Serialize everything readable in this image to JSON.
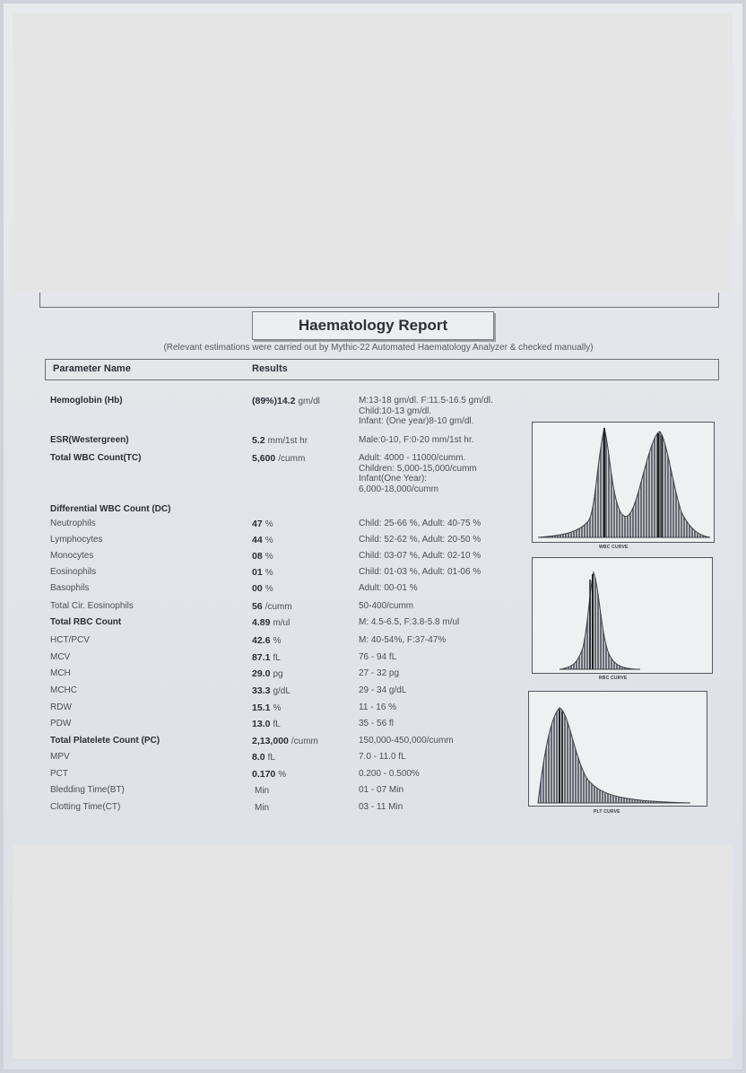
{
  "report": {
    "title": "Haematology Report",
    "subtitle": "(Relevant estimations were carried out by Mythic-22 Automated Haematology Analyzer & checked manually)",
    "col_parameter": "Parameter Name",
    "col_results": "Results"
  },
  "rows": [
    {
      "name": "Hemoglobin (Hb)",
      "bold": true,
      "value": "(89%)14.2",
      "unit": "gm/dl",
      "ref": [
        "M:13-18 gm/dl. F:11.5-16.5 gm/dl.",
        "Child:10-13 gm/dl.",
        "Infant: (One year)8-10 gm/dl."
      ]
    },
    {
      "name": "ESR(Westergreen)",
      "bold": true,
      "value": "5.2",
      "unit": "mm/1st hr",
      "ref": [
        "Male:0-10, F:0-20 mm/1st hr."
      ]
    },
    {
      "name": "Total WBC Count(TC)",
      "bold": true,
      "value": "5,600",
      "unit": "/cumm",
      "ref": [
        "Adult: 4000 - 11000/cumm.",
        "Children: 5,000-15,000/cumm",
        "Infant(One Year):",
        "6,000-18,000/cumm"
      ]
    },
    {
      "name": "Differential WBC Count (DC)",
      "bold": true,
      "value": "",
      "unit": "",
      "ref": []
    },
    {
      "name": "Neutrophils",
      "bold": false,
      "value": "47",
      "unit": "%",
      "ref": [
        "Child: 25-66 %, Adult: 40-75 %"
      ]
    },
    {
      "name": "Lymphocytes",
      "bold": false,
      "value": "44",
      "unit": "%",
      "ref": [
        "Child: 52-62 %, Adult: 20-50 %"
      ]
    },
    {
      "name": "Monocytes",
      "bold": false,
      "value": "08",
      "unit": "%",
      "ref": [
        "Child: 03-07 %, Adult: 02-10 %"
      ]
    },
    {
      "name": "Eosinophils",
      "bold": false,
      "value": "01",
      "unit": "%",
      "ref": [
        "Child: 01-03 %, Adult: 01-06 %"
      ]
    },
    {
      "name": "Basophils",
      "bold": false,
      "value": "00",
      "unit": "%",
      "ref": [
        "Adult: 00-01 %"
      ]
    },
    {
      "name": "Total Cir. Eosinophils",
      "bold": false,
      "value": "56",
      "unit": "/cumm",
      "ref": [
        "50-400/cumm"
      ]
    },
    {
      "name": "Total RBC Count",
      "bold": true,
      "value": "4.89",
      "unit": "m/ul",
      "ref": [
        "M: 4.5-6.5, F:3.8-5.8 m/ul"
      ]
    },
    {
      "name": "HCT/PCV",
      "bold": false,
      "value": "42.6",
      "unit": "%",
      "ref": [
        "M: 40-54%, F:37-47%"
      ]
    },
    {
      "name": "MCV",
      "bold": false,
      "value": "87.1",
      "unit": "fL",
      "ref": [
        "76 - 94 fL"
      ]
    },
    {
      "name": "MCH",
      "bold": false,
      "value": "29.0",
      "unit": "pg",
      "ref": [
        "27 - 32 pg"
      ]
    },
    {
      "name": "MCHC",
      "bold": false,
      "value": "33.3",
      "unit": "g/dL",
      "ref": [
        "29 - 34 g/dL"
      ]
    },
    {
      "name": "RDW",
      "bold": false,
      "value": "15.1",
      "unit": "%",
      "ref": [
        "11 - 16 %"
      ]
    },
    {
      "name": "PDW",
      "bold": false,
      "value": "13.0",
      "unit": "fL",
      "ref": [
        "35 - 56 fl"
      ]
    },
    {
      "name": "Total Platelete Count (PC)",
      "bold": true,
      "value": "2,13,000",
      "unit": "/cumm",
      "ref": [
        "150,000-450,000/cumm"
      ]
    },
    {
      "name": "MPV",
      "bold": false,
      "value": "8.0",
      "unit": "fL",
      "ref": [
        "7.0 - 11.0 fL"
      ]
    },
    {
      "name": "PCT",
      "bold": false,
      "value": "0.170",
      "unit": "%",
      "ref": [
        "0.200 - 0.500%"
      ]
    },
    {
      "name": "Bledding Time(BT)",
      "bold": false,
      "value": "",
      "unit": "Min",
      "ref": [
        "01 - 07 Min"
      ]
    },
    {
      "name": "Clotting Time(CT)",
      "bold": false,
      "value": "",
      "unit": "Min",
      "ref": [
        "03 - 11 Min"
      ]
    }
  ],
  "curves": {
    "wbc_label": "WBC CURVE",
    "rbc_label": "RBC CURVE",
    "plt_label": "PLT CURVE"
  }
}
